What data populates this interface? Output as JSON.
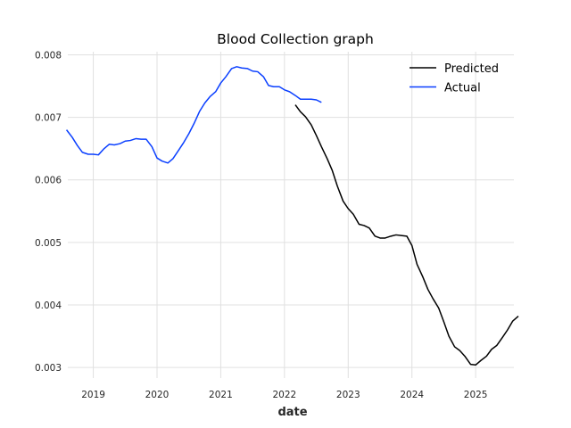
{
  "chart_data": {
    "type": "line",
    "title": "Blood Collection graph",
    "xlabel": "date",
    "ylabel": "",
    "xlim": [
      2018.6,
      2025.6
    ],
    "ylim": [
      0.00283,
      0.00805
    ],
    "x_ticks": [
      2019,
      2020,
      2021,
      2022,
      2023,
      2024,
      2025
    ],
    "x_tick_labels": [
      "2019",
      "2020",
      "2021",
      "2022",
      "2023",
      "2024",
      "2025"
    ],
    "y_ticks": [
      0.003,
      0.004,
      0.005,
      0.006,
      0.007,
      0.008
    ],
    "y_tick_labels": [
      "0.003",
      "0.004",
      "0.005",
      "0.006",
      "0.007",
      "0.008"
    ],
    "grid": true,
    "legend_position": "top-right",
    "series": [
      {
        "name": "Predicted",
        "color": "#000000",
        "points": [
          [
            2022.17,
            0.0072
          ],
          [
            2022.25,
            0.00709
          ],
          [
            2022.33,
            0.00701
          ],
          [
            2022.42,
            0.00688
          ],
          [
            2022.5,
            0.00671
          ],
          [
            2022.58,
            0.00653
          ],
          [
            2022.67,
            0.00634
          ],
          [
            2022.75,
            0.00615
          ],
          [
            2022.83,
            0.0059
          ],
          [
            2022.92,
            0.00566
          ],
          [
            2023.0,
            0.00554
          ],
          [
            2023.08,
            0.00545
          ],
          [
            2023.17,
            0.00529
          ],
          [
            2023.25,
            0.00527
          ],
          [
            2023.33,
            0.00523
          ],
          [
            2023.42,
            0.0051
          ],
          [
            2023.5,
            0.00507
          ],
          [
            2023.58,
            0.00507
          ],
          [
            2023.67,
            0.0051
          ],
          [
            2023.75,
            0.00512
          ],
          [
            2023.83,
            0.00511
          ],
          [
            2023.92,
            0.0051
          ],
          [
            2024.0,
            0.00495
          ],
          [
            2024.08,
            0.00465
          ],
          [
            2024.17,
            0.00445
          ],
          [
            2024.25,
            0.00425
          ],
          [
            2024.33,
            0.0041
          ],
          [
            2024.42,
            0.00395
          ],
          [
            2024.5,
            0.00373
          ],
          [
            2024.58,
            0.0035
          ],
          [
            2024.67,
            0.00333
          ],
          [
            2024.75,
            0.00327
          ],
          [
            2024.83,
            0.00318
          ],
          [
            2024.92,
            0.00305
          ],
          [
            2025.0,
            0.00304
          ],
          [
            2025.08,
            0.00311
          ],
          [
            2025.17,
            0.00318
          ],
          [
            2025.25,
            0.00329
          ],
          [
            2025.33,
            0.00335
          ],
          [
            2025.42,
            0.00348
          ],
          [
            2025.5,
            0.0036
          ],
          [
            2025.58,
            0.00374
          ],
          [
            2025.67,
            0.00382
          ]
        ]
      },
      {
        "name": "Actual",
        "color": "#0a3fff",
        "points": [
          [
            2018.58,
            0.0068
          ],
          [
            2018.67,
            0.00668
          ],
          [
            2018.75,
            0.00655
          ],
          [
            2018.83,
            0.00644
          ],
          [
            2018.92,
            0.00641
          ],
          [
            2019.0,
            0.00641
          ],
          [
            2019.08,
            0.0064
          ],
          [
            2019.17,
            0.0065
          ],
          [
            2019.25,
            0.00657
          ],
          [
            2019.33,
            0.00656
          ],
          [
            2019.42,
            0.00658
          ],
          [
            2019.5,
            0.00662
          ],
          [
            2019.58,
            0.00663
          ],
          [
            2019.67,
            0.00666
          ],
          [
            2019.75,
            0.00665
          ],
          [
            2019.83,
            0.00665
          ],
          [
            2019.92,
            0.00653
          ],
          [
            2020.0,
            0.00635
          ],
          [
            2020.08,
            0.0063
          ],
          [
            2020.17,
            0.00627
          ],
          [
            2020.25,
            0.00634
          ],
          [
            2020.33,
            0.00646
          ],
          [
            2020.42,
            0.0066
          ],
          [
            2020.5,
            0.00674
          ],
          [
            2020.58,
            0.0069
          ],
          [
            2020.67,
            0.0071
          ],
          [
            2020.75,
            0.00723
          ],
          [
            2020.83,
            0.00733
          ],
          [
            2020.92,
            0.00741
          ],
          [
            2021.0,
            0.00755
          ],
          [
            2021.08,
            0.00765
          ],
          [
            2021.17,
            0.00778
          ],
          [
            2021.25,
            0.00781
          ],
          [
            2021.33,
            0.00779
          ],
          [
            2021.42,
            0.00778
          ],
          [
            2021.5,
            0.00774
          ],
          [
            2021.58,
            0.00773
          ],
          [
            2021.67,
            0.00765
          ],
          [
            2021.75,
            0.00751
          ],
          [
            2021.83,
            0.00749
          ],
          [
            2021.92,
            0.00749
          ],
          [
            2022.0,
            0.00744
          ],
          [
            2022.08,
            0.00741
          ],
          [
            2022.17,
            0.00735
          ],
          [
            2022.25,
            0.00729
          ],
          [
            2022.33,
            0.00729
          ],
          [
            2022.42,
            0.00729
          ],
          [
            2022.5,
            0.00728
          ],
          [
            2022.58,
            0.00724
          ]
        ]
      }
    ]
  }
}
